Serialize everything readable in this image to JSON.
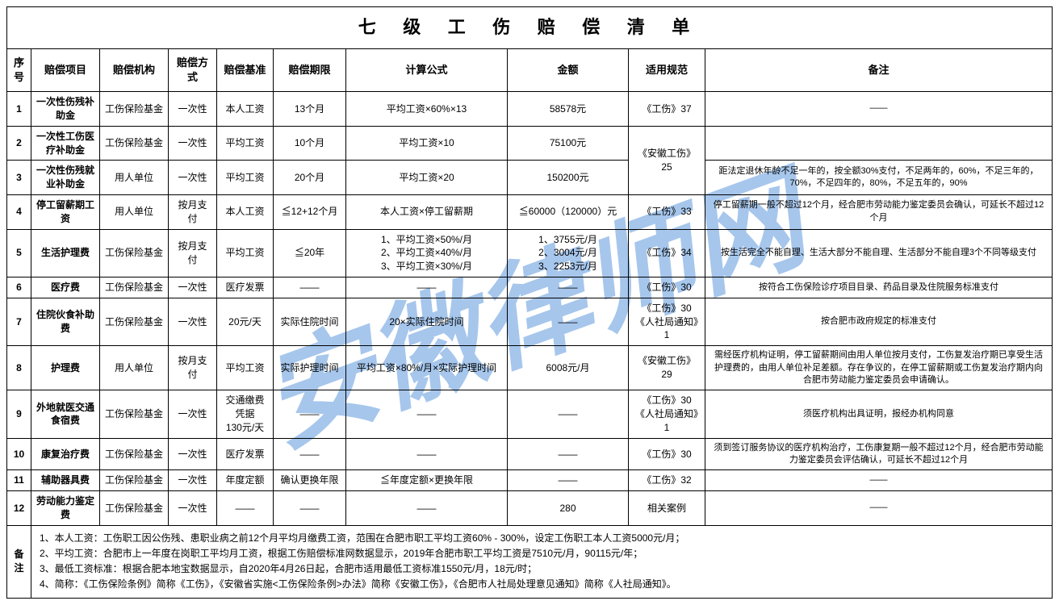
{
  "title": "七 级 工 伤 赔 偿 清 单",
  "watermark_text": "安徽律师网",
  "watermark_color": "#3b82d6",
  "headers": {
    "seq": "序号",
    "item": "赔偿项目",
    "org": "赔偿机构",
    "method": "赔偿方式",
    "basis": "赔偿基准",
    "period": "赔偿期限",
    "formula": "计算公式",
    "amount": "金额",
    "rule": "适用规范",
    "remark": "备注"
  },
  "rows": [
    {
      "seq": "1",
      "item": "一次性伤残补助金",
      "org": "工伤保险基金",
      "method": "一次性",
      "basis": "本人工资",
      "period": "13个月",
      "formula": "平均工资×60%×13",
      "amount": "58578元",
      "rule": "《工伤》37",
      "remark": "——"
    },
    {
      "seq": "2",
      "item": "一次性工伤医疗补助金",
      "org": "工伤保险基金",
      "method": "一次性",
      "basis": "平均工资",
      "period": "10个月",
      "formula": "平均工资×10",
      "amount": "75100元",
      "rule": "",
      "remark": ""
    },
    {
      "seq": "3",
      "item": "一次性伤残就业补助金",
      "org": "用人单位",
      "method": "一次性",
      "basis": "平均工资",
      "period": "20个月",
      "formula": "平均工资×20",
      "amount": "150200元",
      "rule": "《安徽工伤》25",
      "remark": "距法定退休年龄不足一年的，按全额30%支付，不足两年的，60%，不足三年的，70%，不足四年的，80%，不足五年的，90%"
    },
    {
      "seq": "4",
      "item": "停工留薪期工资",
      "org": "用人单位",
      "method": "按月支付",
      "basis": "本人工资",
      "period": "≦12+12个月",
      "formula": "本人工资×停工留薪期",
      "amount": "≦60000（120000）元",
      "rule": "《工伤》33",
      "remark": "停工留薪期一般不超过12个月，经合肥市劳动能力鉴定委员会确认，可延长不超过12个月"
    },
    {
      "seq": "5",
      "item": "生活护理费",
      "org": "工伤保险基金",
      "method": "按月支付",
      "basis": "平均工资",
      "period": "≦20年",
      "formula": "1、平均工资×50%/月\n2、平均工资×40%/月\n3、平均工资×30%/月",
      "amount": "1、3755元/月\n2、3004元/月\n3、2253元/月",
      "rule": "《工伤》34",
      "remark": "按生活完全不能自理、生活大部分不能自理、生活部分不能自理3个不同等级支付"
    },
    {
      "seq": "6",
      "item": "医疗费",
      "org": "工伤保险基金",
      "method": "一次性",
      "basis": "医疗发票",
      "period": "——",
      "formula": "——",
      "amount": "——",
      "rule": "《工伤》30",
      "remark": "按符合工伤保险诊疗项目目录、药品目录及住院服务标准支付"
    },
    {
      "seq": "7",
      "item": "住院伙食补助费",
      "org": "工伤保险基金",
      "method": "一次性",
      "basis": "20元/天",
      "period": "实际住院时间",
      "formula": "20×实际住院时间",
      "amount": "——",
      "rule": "《工伤》30\n《人社局通知》1",
      "remark": "按合肥市政府规定的标准支付"
    },
    {
      "seq": "8",
      "item": "护理费",
      "org": "用人单位",
      "method": "按月支付",
      "basis": "平均工资",
      "period": "实际护理时间",
      "formula": "平均工资×80%/月×实际护理时间",
      "amount": "6008元/月",
      "rule": "《安徽工伤》29",
      "remark": "需经医疗机构证明，停工留薪期间由用人单位按月支付，工伤复发治疗期已享受生活护理费的，由用人单位补足差额。存在争议的，在停工留薪期或工伤复发治疗期内向合肥市劳动能力鉴定委员会申请确认。"
    },
    {
      "seq": "9",
      "item": "外地就医交通食宿费",
      "org": "工伤保险基金",
      "method": "一次性",
      "basis": "交通缴费凭据\n130元/天",
      "period": "——",
      "formula": "——",
      "amount": "——",
      "rule": "《工伤》30\n《人社局通知》1",
      "remark": "须医疗机构出具证明，报经办机构同意"
    },
    {
      "seq": "10",
      "item": "康复治疗费",
      "org": "工伤保险基金",
      "method": "一次性",
      "basis": "医疗发票",
      "period": "——",
      "formula": "——",
      "amount": "——",
      "rule": "《工伤》30",
      "remark": "须到签订服务协议的医疗机构治疗，工伤康复期一般不超过12个月，经合肥市劳动能力鉴定委员会评估确认，可延长不超过12个月"
    },
    {
      "seq": "11",
      "item": "辅助器具费",
      "org": "工伤保险基金",
      "method": "一次性",
      "basis": "年度定额",
      "period": "确认更换年限",
      "formula": "≦年度定额×更换年限",
      "amount": "——",
      "rule": "《工伤》32",
      "remark": "——"
    },
    {
      "seq": "12",
      "item": "劳动能力鉴定费",
      "org": "工伤保险基金",
      "method": "一次性",
      "basis": "——",
      "period": "——",
      "formula": "——",
      "amount": "280",
      "rule": "相关案例",
      "remark": "——"
    }
  ],
  "footnote_label": "备注",
  "footnotes": [
    "1、本人工资：工伤职工因公伤残、患职业病之前12个月平均月缴费工资，范围在合肥市职工平均工资60% - 300%，设定工伤职工本人工资5000元/月；",
    "2、平均工资：合肥市上一年度在岗职工平均月工资，根据工伤赔偿标准网数据显示，2019年合肥市职工平均工资是7510元/月，90115元/年；",
    "3、最低工资标准：根据合肥本地宝数据显示，自2020年4月26日起，合肥市适用最低工资标准1550元/月，18元/时；",
    "4、简称：《工伤保险条例》简称《工伤》，《安徽省实施<工伤保险条例>办法》简称《安徽工伤》，《合肥市人社局处理意见通知》简称《人社局通知》。"
  ]
}
